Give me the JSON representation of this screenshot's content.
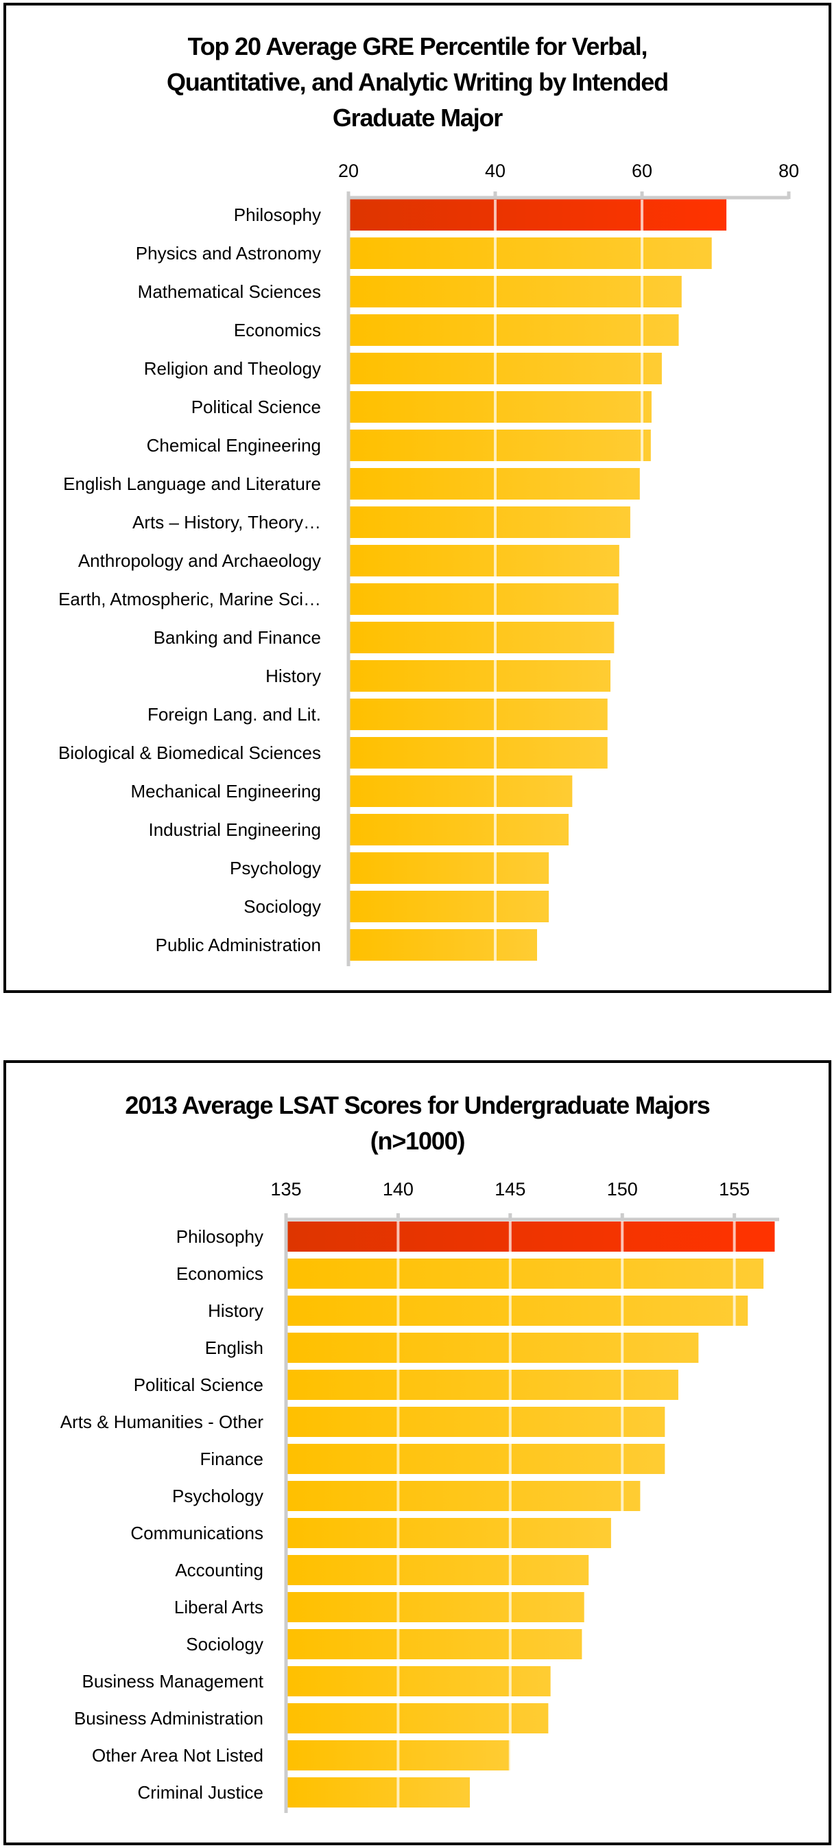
{
  "chart_data": [
    {
      "id": "gre",
      "type": "bar",
      "orientation": "horizontal",
      "title": "Top 20 Average GRE Percentile for Verbal, Quantitative, and Analytic Writing by Intended Graduate Major",
      "title_lines": [
        "Top 20 Average GRE Percentile for Verbal,",
        "Quantitative, and Analytic Writing by Intended",
        "Graduate Major"
      ],
      "xlabel": "",
      "ylabel": "",
      "xlim": [
        20,
        80
      ],
      "xticks": [
        20,
        40,
        60,
        80
      ],
      "x_axis_position": "top",
      "grid": true,
      "legend": "none",
      "highlight_color": "#FF3300",
      "bar_color": "#FFC000",
      "categories": [
        "Philosophy",
        "Physics and Astronomy",
        "Mathematical Sciences",
        "Economics",
        "Religion and Theology",
        "Political Science",
        "Chemical Engineering",
        "English Language and Literature",
        "Arts – History, Theory…",
        "Anthropology and Archaeology",
        "Earth, Atmospheric, Marine Sci…",
        "Banking and Finance",
        "History",
        "Foreign Lang. and Lit.",
        "Biological & Biomedical Sciences",
        "Mechanical Engineering",
        "Industrial Engineering",
        "Psychology",
        "Sociology",
        "Public Administration"
      ],
      "values": [
        71.5,
        69.5,
        65.4,
        65.0,
        62.7,
        61.3,
        61.2,
        59.7,
        58.4,
        56.9,
        56.8,
        56.2,
        55.7,
        55.3,
        55.3,
        50.5,
        50.0,
        47.3,
        47.3,
        45.7
      ],
      "highlighted": [
        "Philosophy"
      ]
    },
    {
      "id": "lsat",
      "type": "bar",
      "orientation": "horizontal",
      "title": "2013 Average LSAT Scores for Undergraduate Majors (n>1000)",
      "title_lines": [
        "2013 Average LSAT Scores for Undergraduate Majors",
        "(n>1000)"
      ],
      "xlabel": "",
      "ylabel": "",
      "xlim": [
        135,
        157
      ],
      "xticks": [
        135,
        140,
        145,
        150,
        155
      ],
      "x_axis_position": "top",
      "grid": true,
      "legend": "none",
      "highlight_color": "#FF3300",
      "bar_color": "#FFC000",
      "categories": [
        "Philosophy",
        "Economics",
        "History",
        "English",
        "Political Science",
        "Arts & Humanities - Other",
        "Finance",
        "Psychology",
        "Communications",
        "Accounting",
        "Liberal Arts",
        "Sociology",
        "Business Management",
        "Business Administration",
        "Other Area Not Listed",
        "Criminal Justice"
      ],
      "values": [
        156.8,
        156.3,
        155.6,
        153.4,
        152.5,
        151.9,
        151.9,
        150.8,
        149.5,
        148.5,
        148.3,
        148.2,
        146.8,
        146.7,
        145.0,
        143.2
      ],
      "highlighted": [
        "Philosophy"
      ]
    }
  ]
}
